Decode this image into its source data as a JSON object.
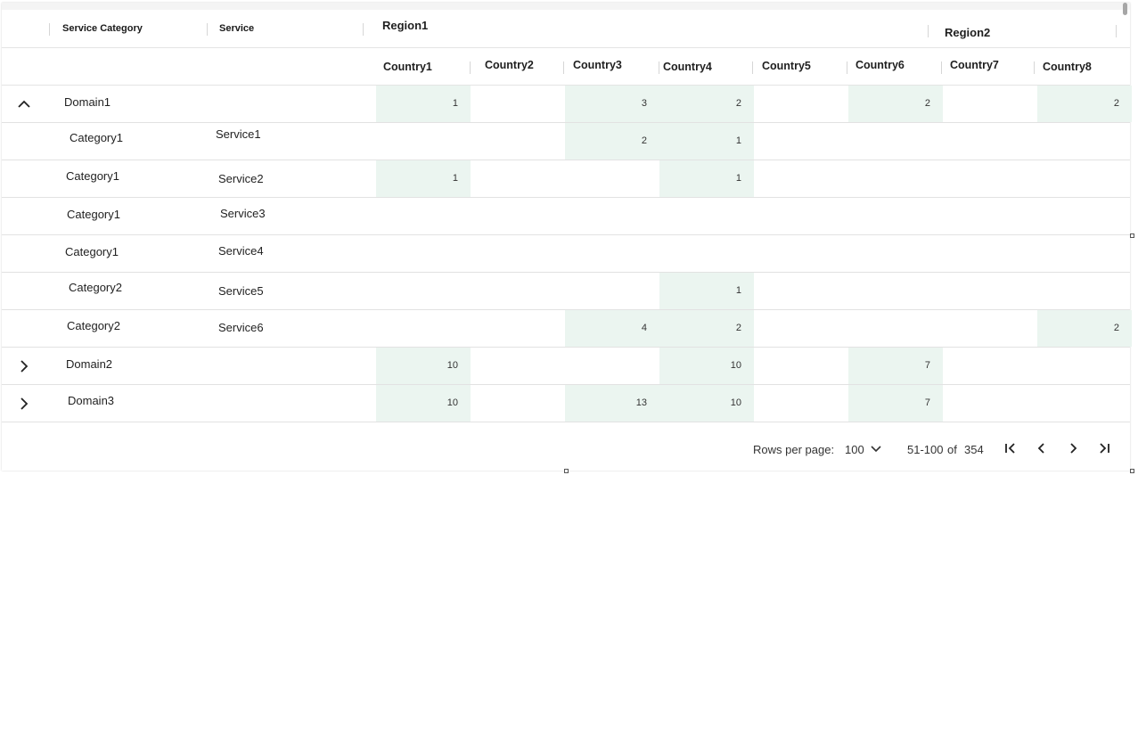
{
  "table": {
    "columns": {
      "service_category": "Service Category",
      "service": "Service"
    },
    "regions": [
      "Region1",
      "Region2"
    ],
    "countries": [
      "Country1",
      "Country2",
      "Country3",
      "Country4",
      "Country5",
      "Country6",
      "Country7",
      "Country8"
    ],
    "rows": [
      {
        "kind": "domain",
        "expanded": true,
        "category": "Domain1",
        "service": "",
        "values": [
          "1",
          "",
          "3",
          "2",
          "",
          "2",
          "",
          "2"
        ]
      },
      {
        "kind": "detail",
        "category": "Category1",
        "service": "Service1",
        "values": [
          "",
          "",
          "2",
          "1",
          "",
          "",
          "",
          ""
        ]
      },
      {
        "kind": "detail",
        "category": "Category1",
        "service": "Service2",
        "values": [
          "1",
          "",
          "",
          "1",
          "",
          "",
          "",
          ""
        ]
      },
      {
        "kind": "detail",
        "category": "Category1",
        "service": "Service3",
        "values": [
          "",
          "",
          "",
          "",
          "",
          "",
          "",
          ""
        ]
      },
      {
        "kind": "detail",
        "category": "Category1",
        "service": "Service4",
        "values": [
          "",
          "",
          "",
          "",
          "",
          "",
          "",
          ""
        ]
      },
      {
        "kind": "detail",
        "category": "Category2",
        "service": "Service5",
        "values": [
          "",
          "",
          "",
          "1",
          "",
          "",
          "",
          ""
        ]
      },
      {
        "kind": "detail",
        "category": "Category2",
        "service": "Service6",
        "values": [
          "",
          "",
          "4",
          "2",
          "",
          "",
          "",
          "2"
        ]
      },
      {
        "kind": "domain",
        "expanded": false,
        "category": "Domain2",
        "service": "",
        "values": [
          "10",
          "",
          "",
          "10",
          "",
          "7",
          "",
          ""
        ]
      },
      {
        "kind": "domain",
        "expanded": false,
        "category": "Domain3",
        "service": "",
        "values": [
          "10",
          "",
          "13",
          "10",
          "",
          "7",
          "",
          ""
        ]
      }
    ]
  },
  "pagination": {
    "rows_per_page_label": "Rows per page:",
    "rows_per_page_value": "100",
    "range": "51-100",
    "of_label": "of",
    "total": "354"
  },
  "colors": {
    "highlight": "#ebf5f0",
    "border": "#e2e2e2"
  },
  "icons": {
    "expanded": "chevron-up-icon",
    "collapsed": "chevron-right-icon",
    "first": "first-page-icon",
    "prev": "previous-page-icon",
    "next": "next-page-icon",
    "last": "last-page-icon",
    "dropdown": "chevron-down-icon"
  }
}
